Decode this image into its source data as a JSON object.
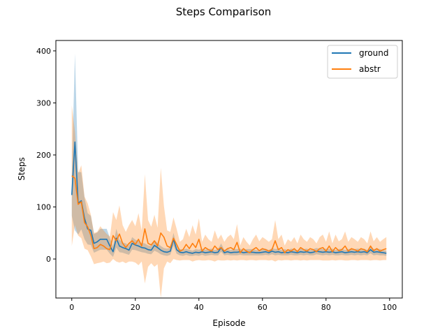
{
  "chart_data": {
    "type": "line",
    "title": "Steps Comparison",
    "xlabel": "Episode",
    "ylabel": "Steps",
    "xlim": [
      -5,
      104
    ],
    "ylim": [
      -75,
      420
    ],
    "xticks": [
      0,
      20,
      40,
      60,
      80,
      100
    ],
    "yticks": [
      0,
      100,
      200,
      300,
      400
    ],
    "grid": false,
    "legend_position": "top-right",
    "series": [
      {
        "name": "ground",
        "color": "#1f77b4",
        "band_color": "#1f77b4",
        "values": [
          123,
          225,
          107,
          112,
          78,
          58,
          55,
          30,
          33,
          38,
          38,
          38,
          25,
          14,
          40,
          25,
          22,
          20,
          17,
          30,
          27,
          25,
          22,
          21,
          18,
          17,
          26,
          22,
          17,
          14,
          13,
          15,
          38,
          18,
          13,
          12,
          14,
          12,
          11,
          13,
          12,
          14,
          12,
          13,
          14,
          12,
          13,
          22,
          12,
          14,
          12,
          13,
          13,
          14,
          12,
          13,
          13,
          13,
          12,
          12,
          13,
          14,
          12,
          15,
          13,
          14,
          12,
          13,
          12,
          14,
          13,
          12,
          14,
          13,
          14,
          12,
          13,
          15,
          14,
          13,
          14,
          13,
          14,
          12,
          13,
          14,
          12,
          13,
          14,
          13,
          14,
          13,
          14,
          12,
          18,
          13,
          14,
          13,
          12,
          11
        ],
        "band_half": [
          40,
          170,
          60,
          55,
          40,
          30,
          28,
          18,
          18,
          20,
          20,
          20,
          15,
          10,
          18,
          12,
          10,
          10,
          9,
          12,
          10,
          10,
          9,
          9,
          8,
          8,
          10,
          9,
          8,
          7,
          7,
          7,
          12,
          8,
          6,
          6,
          6,
          6,
          5,
          6,
          6,
          6,
          6,
          6,
          6,
          5,
          6,
          8,
          5,
          6,
          5,
          6,
          6,
          6,
          5,
          6,
          6,
          6,
          5,
          5,
          6,
          6,
          5,
          6,
          6,
          6,
          5,
          6,
          5,
          6,
          6,
          5,
          6,
          6,
          6,
          5,
          6,
          6,
          6,
          6,
          6,
          6,
          6,
          5,
          6,
          6,
          5,
          6,
          6,
          6,
          6,
          6,
          6,
          5,
          7,
          6,
          6,
          6,
          5,
          5
        ]
      },
      {
        "name": "abstr",
        "color": "#ff7f0e",
        "band_color": "#ff7f0e",
        "values": [
          160,
          155,
          105,
          110,
          70,
          62,
          45,
          20,
          22,
          28,
          25,
          20,
          18,
          45,
          35,
          48,
          30,
          22,
          30,
          35,
          28,
          38,
          25,
          58,
          30,
          27,
          35,
          25,
          50,
          42,
          25,
          22,
          40,
          28,
          15,
          18,
          28,
          20,
          30,
          22,
          38,
          15,
          22,
          18,
          15,
          25,
          18,
          22,
          15,
          20,
          22,
          18,
          32,
          12,
          20,
          15,
          12,
          18,
          22,
          16,
          20,
          18,
          15,
          18,
          35,
          18,
          22,
          12,
          18,
          15,
          20,
          14,
          22,
          18,
          15,
          20,
          18,
          14,
          20,
          22,
          15,
          25,
          14,
          22,
          16,
          18,
          25,
          15,
          20,
          18,
          15,
          20,
          18,
          14,
          25,
          16,
          20,
          15,
          18,
          20
        ],
        "band_half": [
          135,
          90,
          60,
          70,
          50,
          45,
          40,
          30,
          30,
          35,
          30,
          28,
          25,
          45,
          40,
          55,
          35,
          30,
          35,
          40,
          35,
          50,
          30,
          105,
          45,
          35,
          50,
          35,
          125,
          60,
          30,
          30,
          40,
          30,
          18,
          20,
          30,
          22,
          35,
          25,
          40,
          18,
          25,
          20,
          18,
          30,
          20,
          25,
          18,
          22,
          25,
          20,
          35,
          14,
          22,
          18,
          14,
          20,
          25,
          18,
          22,
          20,
          18,
          20,
          40,
          20,
          25,
          14,
          20,
          18,
          22,
          16,
          25,
          20,
          18,
          22,
          20,
          16,
          22,
          25,
          18,
          28,
          16,
          25,
          18,
          20,
          28,
          18,
          22,
          20,
          18,
          22,
          20,
          16,
          28,
          18,
          22,
          18,
          20,
          22
        ]
      }
    ]
  }
}
